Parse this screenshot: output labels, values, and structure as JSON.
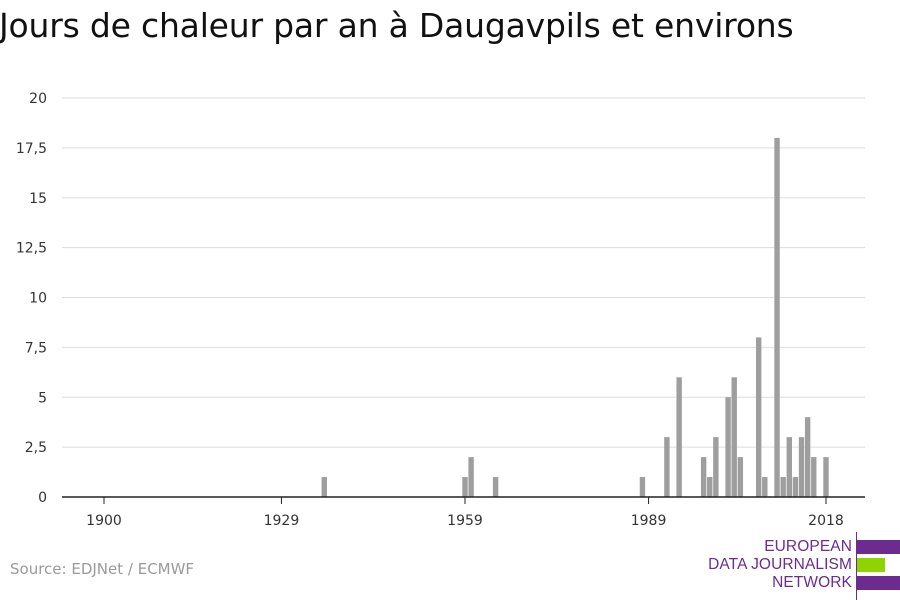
{
  "title": "Jours de chaleur par an à Daugavpils et environs",
  "source": "Source: EDJNet / ECMWF",
  "logo": {
    "lines": [
      "EUROPEAN",
      "DATA JOURNALISM",
      "NETWORK"
    ],
    "colors": {
      "purple": "#6b2b8f",
      "green": "#8fd400"
    }
  },
  "colors": {
    "bar": "#9e9e9e",
    "grid": "#dddddd",
    "axis": "#222222"
  },
  "chart_data": {
    "type": "bar",
    "title": "Jours de chaleur par an à Daugavpils et environs",
    "xlabel": "",
    "ylabel": "",
    "xlim": [
      1900,
      2018
    ],
    "ylim": [
      0,
      20
    ],
    "grid": true,
    "yticks": [
      {
        "value": 0,
        "label": "0"
      },
      {
        "value": 2.5,
        "label": "2,5"
      },
      {
        "value": 5,
        "label": "5"
      },
      {
        "value": 7.5,
        "label": "7,5"
      },
      {
        "value": 10,
        "label": "10"
      },
      {
        "value": 12.5,
        "label": "12,5"
      },
      {
        "value": 15,
        "label": "15"
      },
      {
        "value": 17.5,
        "label": "17,5"
      },
      {
        "value": 20,
        "label": "20"
      }
    ],
    "xticks": [
      {
        "value": 1900,
        "label": "1900"
      },
      {
        "value": 1929,
        "label": "1929"
      },
      {
        "value": 1959,
        "label": "1959"
      },
      {
        "value": 1989,
        "label": "1989"
      },
      {
        "value": 2018,
        "label": "2018"
      }
    ],
    "points": [
      {
        "x": 1936,
        "y": 1
      },
      {
        "x": 1959,
        "y": 1
      },
      {
        "x": 1960,
        "y": 2
      },
      {
        "x": 1964,
        "y": 1
      },
      {
        "x": 1988,
        "y": 1
      },
      {
        "x": 1992,
        "y": 3
      },
      {
        "x": 1994,
        "y": 6
      },
      {
        "x": 1998,
        "y": 2
      },
      {
        "x": 1999,
        "y": 1
      },
      {
        "x": 2000,
        "y": 3
      },
      {
        "x": 2002,
        "y": 5
      },
      {
        "x": 2003,
        "y": 6
      },
      {
        "x": 2004,
        "y": 2
      },
      {
        "x": 2007,
        "y": 8
      },
      {
        "x": 2008,
        "y": 1
      },
      {
        "x": 2010,
        "y": 18
      },
      {
        "x": 2011,
        "y": 1
      },
      {
        "x": 2012,
        "y": 3
      },
      {
        "x": 2013,
        "y": 1
      },
      {
        "x": 2014,
        "y": 3
      },
      {
        "x": 2015,
        "y": 4
      },
      {
        "x": 2016,
        "y": 2
      },
      {
        "x": 2018,
        "y": 2
      }
    ]
  }
}
